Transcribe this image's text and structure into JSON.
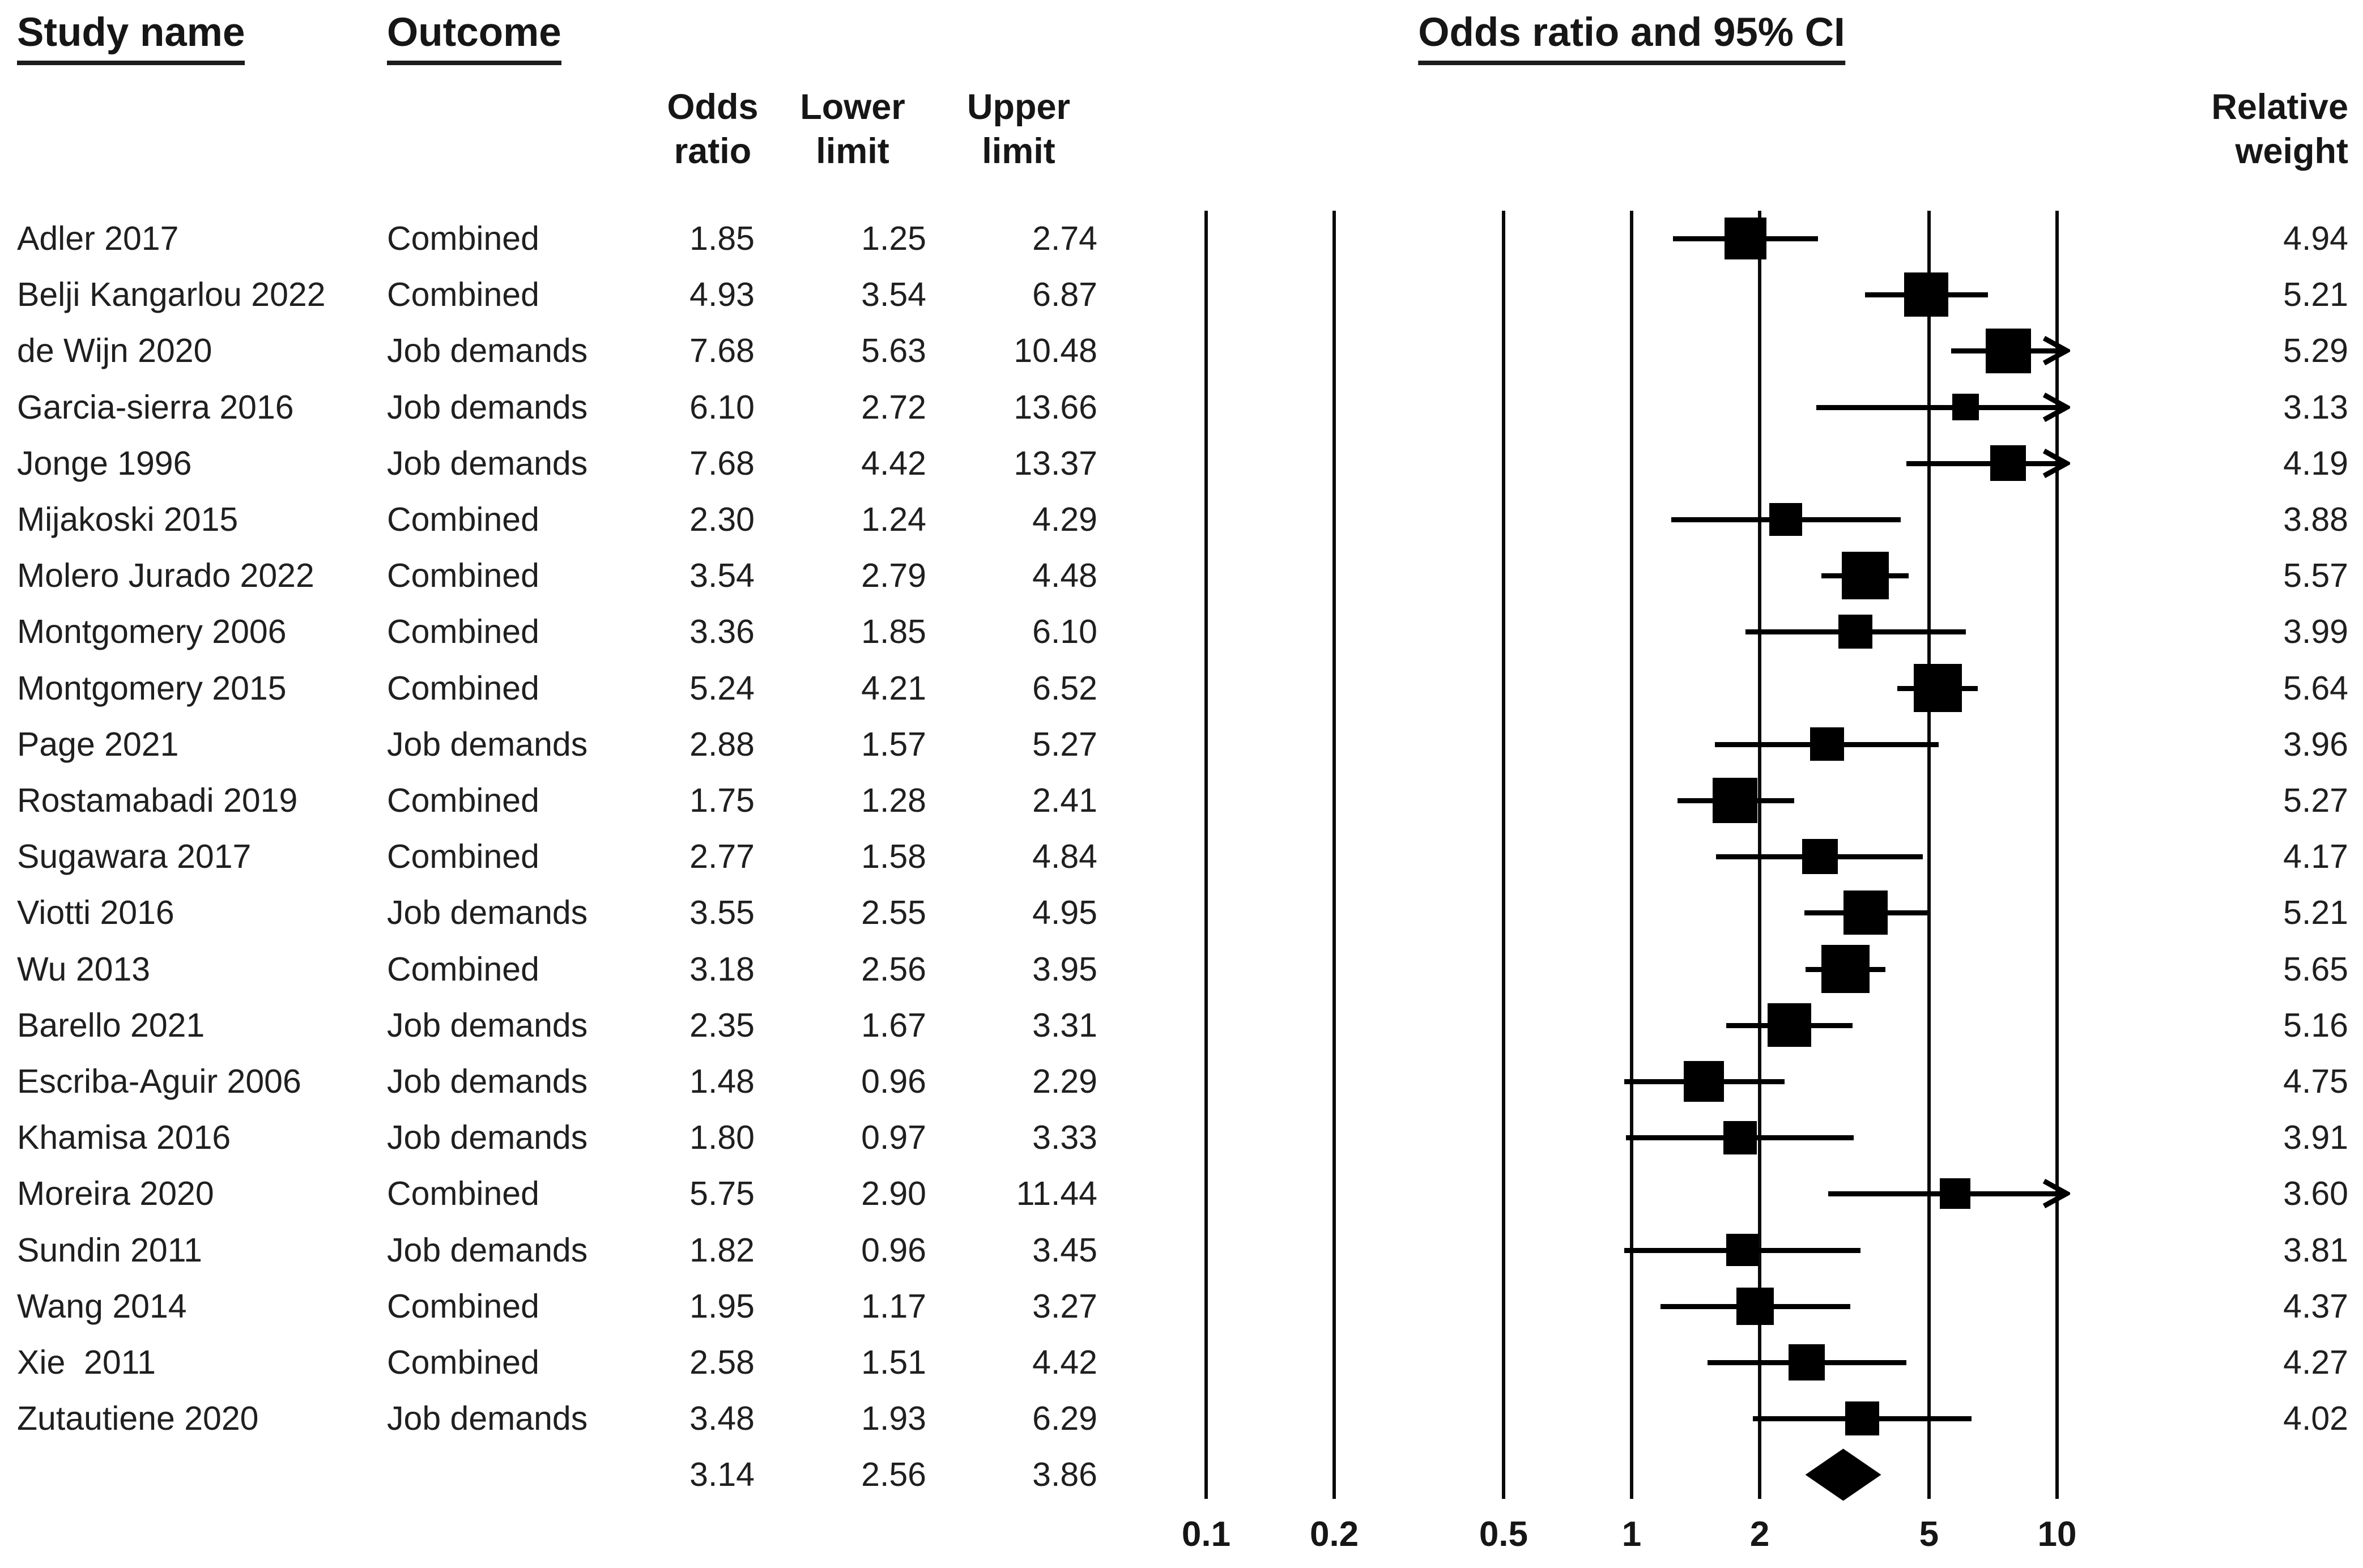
{
  "page": {
    "background": "#ffffff",
    "text_color": "#1f1f1f",
    "marker_color": "#000000"
  },
  "headers": {
    "study": "Study name",
    "outcome": "Outcome",
    "plot": "Odds ratio and 95% CI",
    "odds_ratio": [
      "Odds",
      "ratio"
    ],
    "lower_limit": [
      "Lower",
      "limit"
    ],
    "upper_limit": [
      "Upper",
      "limit"
    ],
    "relative_weight": [
      "Relative",
      "weight"
    ]
  },
  "chart_data": {
    "type": "forest",
    "x_scale": "log10",
    "x_ticks": [
      "0.1",
      "0.2",
      "0.5",
      "1",
      "2",
      "5",
      "10"
    ],
    "x_range": [
      0.1,
      10
    ],
    "arrow_when_upper_exceeds": 10,
    "grid": "vertical-lines-at-ticks",
    "legend_position": "none",
    "studies": [
      {
        "name": "Adler 2017",
        "outcome": "Combined",
        "or": "1.85",
        "lower": "1.25",
        "upper": "2.74",
        "weight": "4.94"
      },
      {
        "name": "Belji Kangarlou 2022",
        "outcome": "Combined",
        "or": "4.93",
        "lower": "3.54",
        "upper": "6.87",
        "weight": "5.21"
      },
      {
        "name": "de Wijn 2020",
        "outcome": "Job demands",
        "or": "7.68",
        "lower": "5.63",
        "upper": "10.48",
        "weight": "5.29"
      },
      {
        "name": "Garcia-sierra 2016",
        "outcome": "Job demands",
        "or": "6.10",
        "lower": "2.72",
        "upper": "13.66",
        "weight": "3.13"
      },
      {
        "name": "Jonge 1996",
        "outcome": "Job demands",
        "or": "7.68",
        "lower": "4.42",
        "upper": "13.37",
        "weight": "4.19"
      },
      {
        "name": "Mijakoski 2015",
        "outcome": "Combined",
        "or": "2.30",
        "lower": "1.24",
        "upper": "4.29",
        "weight": "3.88"
      },
      {
        "name": "Molero Jurado 2022",
        "outcome": "Combined",
        "or": "3.54",
        "lower": "2.79",
        "upper": "4.48",
        "weight": "5.57"
      },
      {
        "name": "Montgomery 2006",
        "outcome": "Combined",
        "or": "3.36",
        "lower": "1.85",
        "upper": "6.10",
        "weight": "3.99"
      },
      {
        "name": "Montgomery 2015",
        "outcome": "Combined",
        "or": "5.24",
        "lower": "4.21",
        "upper": "6.52",
        "weight": "5.64"
      },
      {
        "name": "Page 2021",
        "outcome": "Job demands",
        "or": "2.88",
        "lower": "1.57",
        "upper": "5.27",
        "weight": "3.96"
      },
      {
        "name": "Rostamabadi 2019",
        "outcome": "Combined",
        "or": "1.75",
        "lower": "1.28",
        "upper": "2.41",
        "weight": "5.27"
      },
      {
        "name": "Sugawara 2017",
        "outcome": "Combined",
        "or": "2.77",
        "lower": "1.58",
        "upper": "4.84",
        "weight": "4.17"
      },
      {
        "name": "Viotti 2016",
        "outcome": "Job demands",
        "or": "3.55",
        "lower": "2.55",
        "upper": "4.95",
        "weight": "5.21"
      },
      {
        "name": "Wu 2013",
        "outcome": "Combined",
        "or": "3.18",
        "lower": "2.56",
        "upper": "3.95",
        "weight": "5.65"
      },
      {
        "name": "Barello 2021",
        "outcome": "Job demands",
        "or": "2.35",
        "lower": "1.67",
        "upper": "3.31",
        "weight": "5.16"
      },
      {
        "name": "Escriba-Aguir 2006",
        "outcome": "Job demands",
        "or": "1.48",
        "lower": "0.96",
        "upper": "2.29",
        "weight": "4.75"
      },
      {
        "name": "Khamisa 2016",
        "outcome": "Job demands",
        "or": "1.80",
        "lower": "0.97",
        "upper": "3.33",
        "weight": "3.91"
      },
      {
        "name": "Moreira 2020",
        "outcome": "Combined",
        "or": "5.75",
        "lower": "2.90",
        "upper": "11.44",
        "weight": "3.60"
      },
      {
        "name": "Sundin 2011",
        "outcome": "Job demands",
        "or": "1.82",
        "lower": "0.96",
        "upper": "3.45",
        "weight": "3.81"
      },
      {
        "name": "Wang 2014",
        "outcome": "Combined",
        "or": "1.95",
        "lower": "1.17",
        "upper": "3.27",
        "weight": "4.37"
      },
      {
        "name": "Xie  2011",
        "outcome": "Combined",
        "or": "2.58",
        "lower": "1.51",
        "upper": "4.42",
        "weight": "4.27"
      },
      {
        "name": "Zutautiene 2020",
        "outcome": "Job demands",
        "or": "3.48",
        "lower": "1.93",
        "upper": "6.29",
        "weight": "4.02"
      }
    ],
    "summary": {
      "or": "3.14",
      "lower": "2.56",
      "upper": "3.86"
    }
  }
}
